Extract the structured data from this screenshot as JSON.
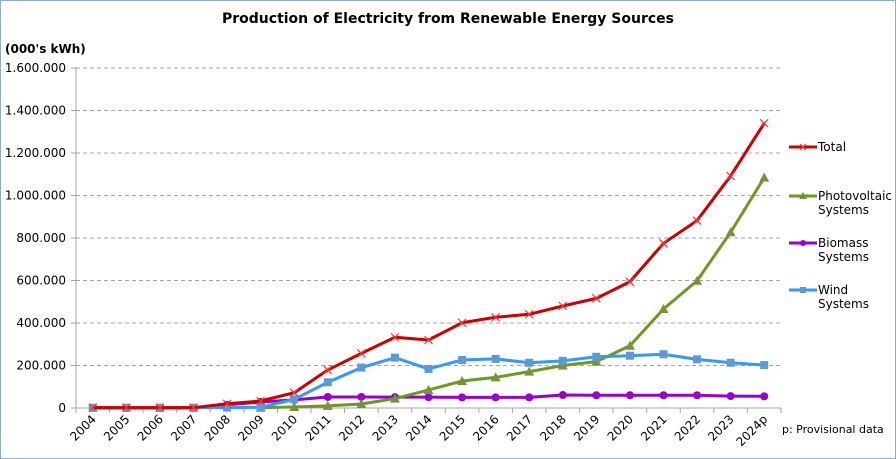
{
  "chart_data": {
    "type": "line",
    "title": "Production of Electricity from Renewable Energy Sources",
    "ylabel": "(000's kWh)",
    "xlabel": "",
    "ylim": [
      0,
      1600000
    ],
    "yticks": [
      0,
      200000,
      400000,
      600000,
      800000,
      1000000,
      1200000,
      1400000,
      1600000
    ],
    "ytick_labels": [
      "0",
      "200.000",
      "400.000",
      "600.000",
      "800.000",
      "1.000.000",
      "1.200.000",
      "1.400.000",
      "1.600.000"
    ],
    "grid": "horizontal-dashed",
    "legend_position": "right",
    "categories": [
      "2004",
      "2005",
      "2006",
      "2007",
      "2008",
      "2009",
      "2010",
      "2011",
      "2012",
      "2013",
      "2014",
      "2015",
      "2016",
      "2017",
      "2018",
      "2019",
      "2020",
      "2021",
      "2022",
      "2023",
      "2024p"
    ],
    "series": [
      {
        "name": "Total",
        "legend_lines": [
          "Total"
        ],
        "color": "#cc0000",
        "marker": "x",
        "values": [
          1500,
          1500,
          1500,
          1500,
          20000,
          33000,
          72000,
          179000,
          257000,
          333000,
          320000,
          401000,
          427000,
          441000,
          480000,
          516000,
          594000,
          775000,
          882000,
          1092000,
          1340000
        ]
      },
      {
        "name": "Photovoltaic Systems",
        "legend_lines": [
          "Photovoltaic",
          " Systems"
        ],
        "color": "#6b9a1f",
        "marker": "triangle",
        "values": [
          0,
          0,
          0,
          0,
          0,
          1000,
          5000,
          10000,
          19000,
          44000,
          85000,
          127000,
          144000,
          171000,
          200000,
          218000,
          293000,
          466000,
          599000,
          827000,
          1084000
        ]
      },
      {
        "name": "Biomass Systems",
        "legend_lines": [
          "Biomass",
          "Systems"
        ],
        "color": "#9900cc",
        "marker": "circle",
        "values": [
          0,
          0,
          0,
          0,
          15000,
          28000,
          38000,
          52000,
          52000,
          51000,
          51000,
          50000,
          50000,
          50000,
          61000,
          60000,
          60000,
          60000,
          60000,
          56000,
          55000
        ]
      },
      {
        "name": "Wind Systems",
        "legend_lines": [
          "Wind",
          "Systems"
        ],
        "color": "#3399ff",
        "marker": "square",
        "values": [
          1500,
          1500,
          1500,
          1500,
          2000,
          3000,
          41000,
          121000,
          190000,
          237000,
          184000,
          226000,
          231000,
          213000,
          222000,
          241000,
          246000,
          253000,
          229000,
          213000,
          202000
        ]
      }
    ],
    "annotations": [
      "p: Provisional data"
    ]
  },
  "colors": {
    "border": "#8eaadb",
    "grid": "#a6a6a6",
    "axis": "#a6a6a6",
    "marker_square": "#5b9bd5",
    "marker_triangle": "#76923c",
    "marker_circle": "#9900cc"
  }
}
